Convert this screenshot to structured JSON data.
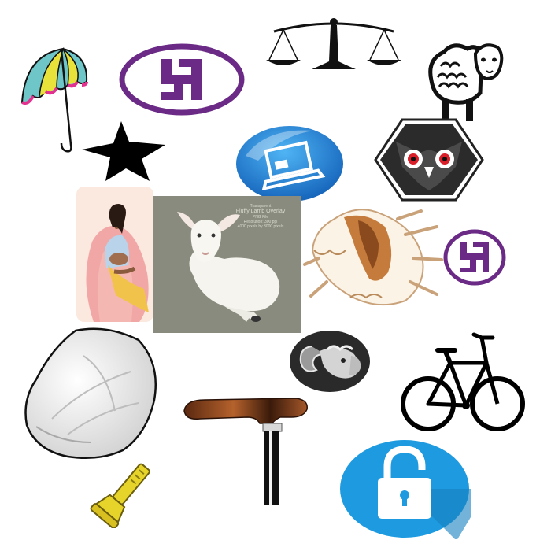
{
  "image_items": [
    {
      "name": "umbrella",
      "icon": "umbrella-icon"
    },
    {
      "name": "swastika-emblem-large",
      "icon": "swastika-icon"
    },
    {
      "name": "scales-of-justice",
      "icon": "scales-icon"
    },
    {
      "name": "sheep",
      "icon": "sheep-icon"
    },
    {
      "name": "star",
      "icon": "star-icon"
    },
    {
      "name": "laptop-button",
      "icon": "laptop-icon"
    },
    {
      "name": "owl-hexagon",
      "icon": "owl-icon"
    },
    {
      "name": "breastfeeding-mother",
      "icon": "mother-icon"
    },
    {
      "name": "lamb-photo-overlay",
      "icon": "lamb-icon"
    },
    {
      "name": "conch-shell-brown",
      "icon": "conch-icon"
    },
    {
      "name": "swastika-emblem-small",
      "icon": "swastika-icon"
    },
    {
      "name": "conch-shell-white",
      "icon": "conch-icon"
    },
    {
      "name": "ram-head-oval",
      "icon": "ram-icon"
    },
    {
      "name": "bicycle",
      "icon": "bicycle-icon"
    },
    {
      "name": "walking-cane",
      "icon": "cane-icon"
    },
    {
      "name": "flashlight",
      "icon": "flashlight-icon"
    },
    {
      "name": "padlock-button",
      "icon": "padlock-icon"
    }
  ],
  "lamb_overlay": {
    "line1": "Transparent",
    "line2": "Fluffy Lamb Overlay",
    "line3": "PNG File",
    "line4": "Resolution: 300 ppi",
    "line5": "4000 pixels by 3000 pixels"
  },
  "colors": {
    "umbrella_teal": "#6fc6c8",
    "umbrella_yellow": "#e9e23a",
    "umbrella_pink": "#e2318f",
    "emblem_purple": "#6a2a86",
    "laptop_blue": "#1f7fd4",
    "padlock_blue": "#1e9be0",
    "photo_grey": "#8a8b7f",
    "cane_brown": "#7a3a18"
  }
}
